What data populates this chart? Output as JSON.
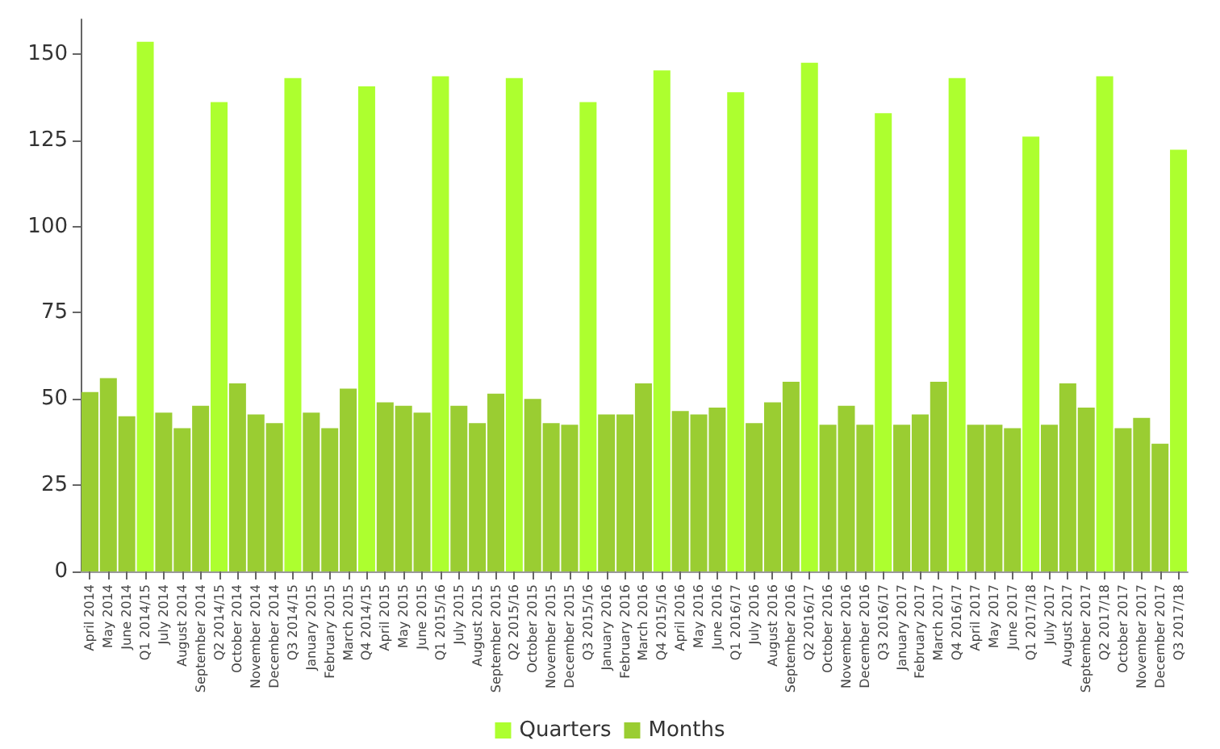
{
  "chart_data": {
    "type": "bar",
    "categories": [
      "April 2014",
      "May 2014",
      "June 2014",
      "Q1 2014/15",
      "July 2014",
      "August 2014",
      "September 2014",
      "Q2 2014/15",
      "October 2014",
      "November 2014",
      "December 2014",
      "Q3 2014/15",
      "January 2015",
      "February 2015",
      "March 2015",
      "Q4 2014/15",
      "April 2015",
      "May 2015",
      "June 2015",
      "Q1 2015/16",
      "July 2015",
      "August 2015",
      "September 2015",
      "Q2 2015/16",
      "October 2015",
      "November 2015",
      "December 2015",
      "Q3 2015/16",
      "January 2016",
      "February 2016",
      "March 2016",
      "Q4 2015/16",
      "April 2016",
      "May 2016",
      "June 2016",
      "Q1 2016/17",
      "July 2016",
      "August 2016",
      "September 2016",
      "Q2 2016/17",
      "October 2016",
      "November 2016",
      "December 2016",
      "Q3 2016/17",
      "January 2017",
      "February 2017",
      "March 2017",
      "Q4 2016/17",
      "April 2017",
      "May 2017",
      "June 2017",
      "Q1 2017/18",
      "July 2017",
      "August 2017",
      "September 2017",
      "Q2 2017/18",
      "October 2017",
      "November 2017",
      "December 2017",
      "Q3 2017/18"
    ],
    "series": [
      {
        "name": "Quarters",
        "color": "#adff2f",
        "values": [
          null,
          null,
          null,
          153.5,
          null,
          null,
          null,
          136,
          null,
          null,
          null,
          143,
          null,
          null,
          null,
          140.6,
          null,
          null,
          null,
          143.5,
          null,
          null,
          null,
          143,
          null,
          null,
          null,
          136,
          null,
          null,
          null,
          145.2,
          null,
          null,
          null,
          138.9,
          null,
          null,
          null,
          147.4,
          null,
          null,
          null,
          132.8,
          null,
          null,
          null,
          143,
          null,
          null,
          null,
          126,
          null,
          null,
          null,
          143.5,
          null,
          null,
          null,
          122.2
        ]
      },
      {
        "name": "Months",
        "color": "#9acd32",
        "values": [
          52,
          56,
          45,
          null,
          46,
          41.5,
          48,
          null,
          54.5,
          45.5,
          43,
          null,
          46,
          41.5,
          53,
          null,
          49,
          48,
          46,
          null,
          48,
          43,
          51.5,
          null,
          50,
          43,
          42.5,
          null,
          45.5,
          45.5,
          54.5,
          null,
          46.5,
          45.5,
          47.5,
          null,
          43,
          49,
          55,
          null,
          42.5,
          48,
          42.5,
          null,
          42.5,
          45.5,
          55,
          null,
          42.5,
          42.5,
          41.5,
          null,
          42.5,
          54.5,
          47.5,
          null,
          41.5,
          44.5,
          37,
          null
        ]
      }
    ],
    "ylim": [
      0,
      160
    ],
    "yticks": [
      0,
      25,
      50,
      75,
      100,
      125,
      150
    ],
    "grid": false,
    "legend": "bottom"
  }
}
